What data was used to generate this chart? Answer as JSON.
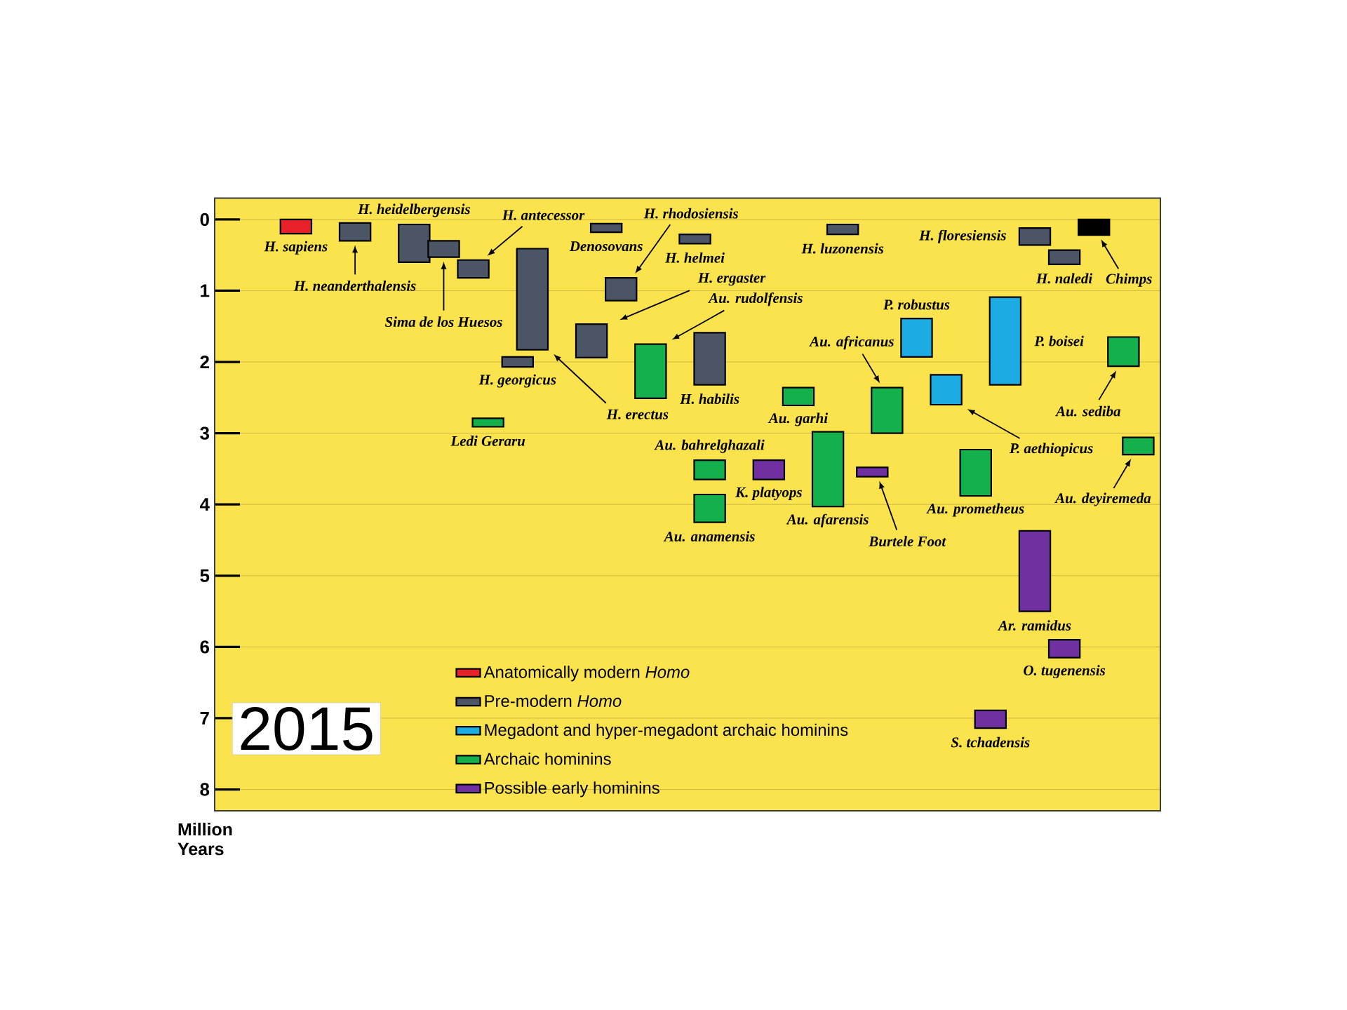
{
  "chart_data": {
    "type": "bar",
    "ylabel": "Million Years",
    "ylim": [
      8.3,
      -0.3
    ],
    "yticks": [
      0,
      1,
      2,
      3,
      4,
      5,
      6,
      7,
      8
    ],
    "grid": "y",
    "legend": "bottom",
    "tick_labels": "y",
    "categories": [
      null,
      null,
      null,
      null,
      null,
      null,
      null,
      null,
      null,
      null,
      null,
      null,
      null,
      null,
      null,
      null,
      null,
      null,
      null,
      null,
      null,
      null,
      null,
      null,
      null,
      null,
      null,
      null,
      null,
      null,
      null,
      null,
      null,
      null,
      null,
      null,
      null,
      null,
      null,
      null,
      null,
      null,
      null,
      null,
      null,
      null,
      null,
      null,
      null,
      null,
      null,
      null,
      null,
      null,
      null,
      null,
      null,
      null,
      null,
      null,
      null,
      null,
      null,
      null
    ],
    "series": [
      {
        "name": "Anatomically modern *Homo*",
        "color": "#e8202a",
        "values": [
          null,
          null,
          null,
          null,
          null,
          0.2,
          null,
          null,
          null,
          null,
          null,
          null,
          null,
          null,
          null,
          null,
          null,
          null,
          null,
          null,
          null,
          null,
          null,
          null,
          null,
          null,
          null,
          null,
          null,
          null,
          null,
          null,
          null,
          null,
          null,
          null,
          null,
          null,
          null,
          null,
          null,
          null,
          null,
          null,
          null,
          null,
          null,
          null,
          null,
          null,
          null,
          null,
          null,
          null,
          null,
          null,
          null,
          null,
          null,
          null,
          null,
          null,
          null,
          null
        ],
        "base": [
          null,
          null,
          null,
          null,
          null,
          0,
          null,
          null,
          null,
          null,
          null,
          null,
          null,
          null,
          null,
          null,
          null,
          null,
          null,
          null,
          null,
          null,
          null,
          null,
          null,
          null,
          null,
          null,
          null,
          null,
          null,
          null,
          null,
          null,
          null,
          null,
          null,
          null,
          null,
          null,
          null,
          null,
          null,
          null,
          null,
          null,
          null,
          null,
          null,
          null,
          null,
          null,
          null,
          null,
          null,
          null,
          null,
          null,
          null,
          null,
          null,
          null,
          null,
          null
        ]
      },
      {
        "name": "Pre-modern *Homo*",
        "color": "#4b5566",
        "values": [
          null,
          null,
          null,
          null,
          null,
          null,
          null,
          null,
          null,
          0.25,
          null,
          null,
          null,
          0.53,
          null,
          0.23,
          null,
          0.25,
          null,
          null,
          0.14,
          1.42,
          null,
          null,
          null,
          0.47,
          0.12,
          0.32,
          null,
          null,
          null,
          null,
          0.13,
          0.73,
          null,
          null,
          null,
          null,
          null,
          null,
          null,
          null,
          0.14,
          null,
          null,
          null,
          null,
          null,
          null,
          null,
          null,
          null,
          null,
          null,
          null,
          0.24,
          null,
          0.2,
          null,
          null,
          null,
          null,
          null,
          null
        ],
        "base": [
          null,
          null,
          null,
          null,
          null,
          null,
          null,
          null,
          null,
          0.05,
          null,
          null,
          null,
          0.07,
          null,
          0.3,
          null,
          0.57,
          null,
          null,
          1.93,
          0.41,
          null,
          null,
          null,
          1.47,
          0.06,
          0.82,
          null,
          null,
          null,
          null,
          0.21,
          1.59,
          null,
          null,
          null,
          null,
          null,
          null,
          null,
          null,
          0.07,
          null,
          null,
          null,
          null,
          null,
          null,
          null,
          null,
          null,
          null,
          null,
          null,
          0.12,
          null,
          0.43,
          null,
          null,
          null,
          null,
          null,
          null
        ]
      },
      {
        "name": "Megadont and hyper-megadont archaic hominins",
        "color": "#1cabe2",
        "values": [
          null,
          null,
          null,
          null,
          null,
          null,
          null,
          null,
          null,
          null,
          null,
          null,
          null,
          null,
          null,
          null,
          null,
          null,
          null,
          null,
          null,
          null,
          null,
          null,
          null,
          null,
          null,
          null,
          null,
          null,
          null,
          null,
          null,
          null,
          null,
          null,
          null,
          null,
          null,
          null,
          null,
          null,
          null,
          null,
          null,
          null,
          null,
          0.54,
          null,
          0.42,
          null,
          null,
          null,
          1.23,
          null,
          null,
          null,
          null,
          null,
          null,
          null,
          null,
          null,
          null
        ],
        "base": [
          null,
          null,
          null,
          null,
          null,
          null,
          null,
          null,
          null,
          null,
          null,
          null,
          null,
          null,
          null,
          null,
          null,
          null,
          null,
          null,
          null,
          null,
          null,
          null,
          null,
          null,
          null,
          null,
          null,
          null,
          null,
          null,
          null,
          null,
          null,
          null,
          null,
          null,
          null,
          null,
          null,
          null,
          null,
          null,
          null,
          null,
          null,
          1.39,
          null,
          2.18,
          null,
          null,
          null,
          1.09,
          null,
          null,
          null,
          null,
          null,
          null,
          null,
          null,
          null,
          null
        ]
      },
      {
        "name": "Archaic hominins",
        "color": "#13b04b",
        "values": [
          null,
          null,
          null,
          null,
          null,
          null,
          null,
          null,
          null,
          null,
          null,
          null,
          null,
          null,
          null,
          null,
          null,
          null,
          0.12,
          null,
          null,
          null,
          null,
          null,
          null,
          null,
          null,
          null,
          null,
          0.76,
          null,
          null,
          null,
          0.27,
          null,
          null,
          null,
          null,
          null,
          0.25,
          null,
          1.05,
          null,
          null,
          null,
          0.64,
          null,
          null,
          null,
          null,
          null,
          0.65,
          null,
          null,
          null,
          null,
          null,
          null,
          null,
          null,
          null,
          0.41,
          0.24,
          null
        ],
        "base": [
          null,
          null,
          null,
          null,
          null,
          null,
          null,
          null,
          null,
          null,
          null,
          null,
          null,
          null,
          null,
          null,
          null,
          null,
          2.79,
          null,
          null,
          null,
          null,
          null,
          null,
          null,
          null,
          null,
          null,
          1.75,
          null,
          null,
          null,
          3.38,
          null,
          null,
          null,
          null,
          null,
          2.36,
          null,
          2.98,
          null,
          null,
          null,
          2.36,
          null,
          null,
          null,
          null,
          null,
          3.23,
          null,
          null,
          null,
          null,
          null,
          null,
          null,
          null,
          null,
          1.65,
          3.06,
          null
        ]
      },
      {
        "color": "#13b04b",
        "values": [
          null,
          null,
          null,
          null,
          null,
          null,
          null,
          null,
          null,
          null,
          null,
          null,
          null,
          null,
          null,
          null,
          null,
          null,
          null,
          null,
          null,
          null,
          null,
          null,
          null,
          null,
          null,
          null,
          null,
          null,
          null,
          null,
          null,
          0.39,
          null,
          null,
          null,
          null,
          null,
          null,
          null,
          null,
          null,
          null,
          null,
          null,
          null,
          null,
          null,
          null,
          null,
          null,
          null,
          null,
          null,
          null,
          null,
          null,
          null,
          null,
          null,
          null,
          null,
          null
        ],
        "base": [
          null,
          null,
          null,
          null,
          null,
          null,
          null,
          null,
          null,
          null,
          null,
          null,
          null,
          null,
          null,
          null,
          null,
          null,
          null,
          null,
          null,
          null,
          null,
          null,
          null,
          null,
          null,
          null,
          null,
          null,
          null,
          null,
          null,
          3.86,
          null,
          null,
          null,
          null,
          null,
          null,
          null,
          null,
          null,
          null,
          null,
          null,
          null,
          null,
          null,
          null,
          null,
          null,
          null,
          null,
          null,
          null,
          null,
          null,
          null,
          null,
          null,
          null,
          null,
          null
        ]
      },
      {
        "name": "Possible early hominins",
        "color": "#7030a0",
        "values": [
          null,
          null,
          null,
          null,
          null,
          null,
          null,
          null,
          null,
          null,
          null,
          null,
          null,
          null,
          null,
          null,
          null,
          null,
          null,
          null,
          null,
          null,
          null,
          null,
          null,
          null,
          null,
          null,
          null,
          null,
          null,
          null,
          null,
          null,
          null,
          null,
          null,
          0.27,
          null,
          null,
          null,
          null,
          null,
          null,
          0.13,
          null,
          null,
          null,
          null,
          null,
          null,
          null,
          0.25,
          null,
          null,
          1.13,
          null,
          0.25,
          null,
          null,
          null,
          null,
          null,
          null
        ],
        "base": [
          null,
          null,
          null,
          null,
          null,
          null,
          null,
          null,
          null,
          null,
          null,
          null,
          null,
          null,
          null,
          null,
          null,
          null,
          null,
          null,
          null,
          null,
          null,
          null,
          null,
          null,
          null,
          null,
          null,
          null,
          null,
          null,
          null,
          null,
          null,
          null,
          null,
          3.38,
          null,
          null,
          null,
          null,
          null,
          null,
          3.48,
          null,
          null,
          null,
          null,
          null,
          null,
          null,
          6.89,
          null,
          null,
          4.37,
          null,
          5.9,
          null,
          null,
          null,
          null,
          null,
          null
        ]
      },
      {
        "color": "#000000",
        "values": [
          null,
          null,
          null,
          null,
          null,
          null,
          null,
          null,
          null,
          null,
          null,
          null,
          null,
          null,
          null,
          null,
          null,
          null,
          null,
          null,
          null,
          null,
          null,
          null,
          null,
          null,
          null,
          null,
          null,
          null,
          null,
          null,
          null,
          null,
          null,
          null,
          null,
          null,
          null,
          null,
          null,
          null,
          null,
          null,
          null,
          null,
          null,
          null,
          null,
          null,
          null,
          null,
          null,
          null,
          null,
          null,
          null,
          null,
          null,
          0.22,
          null,
          null,
          null,
          null
        ],
        "base": [
          null,
          null,
          null,
          null,
          null,
          null,
          null,
          null,
          null,
          null,
          null,
          null,
          null,
          null,
          null,
          null,
          null,
          null,
          null,
          null,
          null,
          null,
          null,
          null,
          null,
          null,
          null,
          null,
          null,
          null,
          null,
          null,
          null,
          null,
          null,
          null,
          null,
          null,
          null,
          null,
          null,
          null,
          null,
          null,
          null,
          null,
          null,
          null,
          null,
          null,
          null,
          null,
          null,
          null,
          null,
          null,
          null,
          null,
          null,
          0,
          null,
          null,
          null,
          null
        ]
      }
    ],
    "annotations": [
      "H. sapiens",
      "H. neanderthalensis",
      "H. heidelbergensis",
      "Sima de los Huesos",
      "H. antecessor",
      "H. georgicus",
      "H. erectus",
      "H. ergaster",
      "Denosovans",
      "H. rhodosiensis",
      "H. helmei",
      "H. habilis",
      "H. luzonensis",
      "H. floresiensis",
      "H. naledi",
      "P. robustus",
      "P. aethiopicus",
      "P. boisei",
      "Ledi Geraru",
      "Au. rudolfensis",
      "Au. bahrelghazali",
      "Au. garhi",
      "Au. afarensis",
      "Au. africanus",
      "Au. prometheus",
      "Au. sediba",
      "Au. deyiremeda",
      "Au. anamensis",
      "K. platyops",
      "Burtele Foot",
      "S. tchadensis",
      "Ar. ramidus",
      "O. tugenensis",
      "Chimps",
      "2015"
    ]
  }
}
